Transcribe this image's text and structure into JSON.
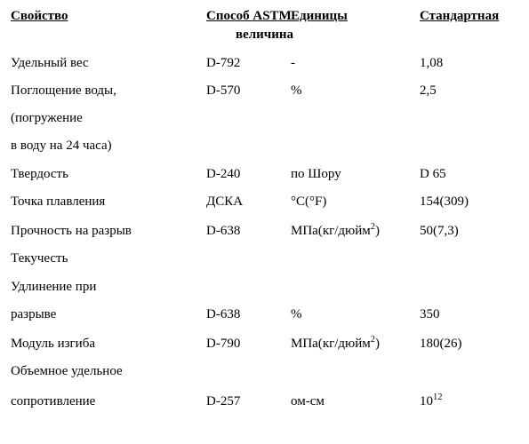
{
  "header": {
    "c1": "Свойство",
    "c2": "Способ ASTM",
    "c3": "Единицы",
    "c4": "Стандартная",
    "sub": "величина"
  },
  "rows": [
    {
      "prop": "Удельный вес",
      "astm": "D-792",
      "units": "-",
      "val": "1,08"
    },
    {
      "prop": "Поглощение воды,",
      "astm": "D-570",
      "units": "%",
      "val": "2,5"
    },
    {
      "prop": "(погружение",
      "astm": "",
      "units": "",
      "val": ""
    },
    {
      "prop": "в воду на 24 часа)",
      "astm": "",
      "units": "",
      "val": ""
    },
    {
      "prop": "Твердость",
      "astm": "D-240",
      "units": "по Шору",
      "val": "D 65"
    },
    {
      "prop": "Точка плавления",
      "astm": "ДСКА",
      "units": "°С(°F)",
      "val": "154(309)"
    },
    {
      "prop": "Прочность на разрыв",
      "astm": "D-638",
      "units_html": "МПа(кг/дюйм<sup>2</sup>)",
      "val": "50(7,3)"
    },
    {
      "prop": "Текучесть",
      "astm": "",
      "units": "",
      "val": ""
    },
    {
      "prop": "Удлинение при",
      "astm": "",
      "units": "",
      "val": ""
    },
    {
      "prop": "разрыве",
      "astm": "D-638",
      "units": "%",
      "val": "350"
    },
    {
      "prop": "Модуль изгиба",
      "astm": "D-790",
      "units_html": "МПа(кг/дюйм<sup>2</sup>)",
      "val": "180(26)"
    },
    {
      "prop": "Объемное удельное",
      "astm": "",
      "units": "",
      "val": ""
    },
    {
      "prop": "сопротивление",
      "astm": "D-257",
      "units": "ом-см",
      "val_html": "10<sup>12</sup>"
    }
  ]
}
